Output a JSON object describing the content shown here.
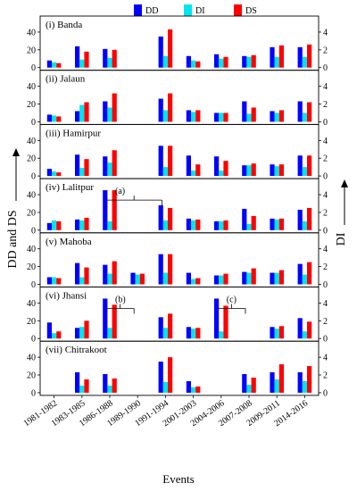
{
  "chart_data": {
    "type": "bar",
    "legend": {
      "placement": "top-center",
      "entries": [
        {
          "name": "DD",
          "color": "#0000ff"
        },
        {
          "name": "DI",
          "color": "#00e5ee"
        },
        {
          "name": "DS",
          "color": "#ff0000"
        }
      ]
    },
    "categories": [
      "1981-1982",
      "1983-1985",
      "1986-1988",
      "1989-1990",
      "1991-1994",
      "2001-2003",
      "2004-2006",
      "2007-2008",
      "2009-2011",
      "2014-2016"
    ],
    "xlabel": "Events",
    "ylabel_left": "DD and DS",
    "ylabel_right": "DI",
    "left_axis": {
      "range": [
        0,
        50
      ],
      "ticks": [
        0,
        20,
        40
      ]
    },
    "right_axis": {
      "range": [
        0,
        5
      ],
      "ticks": [
        0,
        2,
        4
      ]
    },
    "grid": false,
    "panels": [
      {
        "label": "(i) Banda",
        "DD": [
          8,
          24,
          21,
          0,
          35,
          13,
          15,
          13,
          23,
          23
        ],
        "DI": [
          0.6,
          0.9,
          1.1,
          0,
          1.3,
          0.8,
          1.0,
          1.2,
          1.2,
          1.2
        ],
        "DS": [
          5,
          18,
          20,
          0,
          43,
          7,
          12,
          14,
          25,
          26
        ]
      },
      {
        "label": "(ii) Jalaun",
        "DD": [
          8,
          12,
          23,
          0,
          26,
          13,
          10,
          23,
          12,
          23
        ],
        "DI": [
          0.7,
          1.9,
          1.6,
          0,
          1.3,
          1.1,
          1.0,
          0.9,
          1.0,
          1.0
        ],
        "DS": [
          6,
          22,
          32,
          0,
          32,
          13,
          10,
          16,
          13,
          22
        ]
      },
      {
        "label": "(iii) Hamirpur",
        "DD": [
          8,
          24,
          22,
          0,
          34,
          23,
          22,
          12,
          13,
          23
        ],
        "DI": [
          0.5,
          0.9,
          1.5,
          0,
          1.0,
          0.6,
          0.6,
          1.2,
          1.1,
          1.0
        ],
        "DS": [
          4,
          19,
          29,
          0,
          34,
          13,
          17,
          14,
          13,
          23
        ]
      },
      {
        "label": "(iv) Lalitpur",
        "DD": [
          8,
          12,
          45,
          0,
          28,
          13,
          10,
          24,
          13,
          23
        ],
        "DI": [
          1.1,
          1.1,
          1.0,
          0,
          1.1,
          1.1,
          1.0,
          0.7,
          1.2,
          1.0
        ],
        "DS": [
          10,
          14,
          45,
          0,
          25,
          12,
          11,
          16,
          13,
          25
        ]
      },
      {
        "label": "(v) Mahoba",
        "DD": [
          8,
          24,
          22,
          13,
          34,
          13,
          10,
          14,
          13,
          23
        ],
        "DI": [
          0.8,
          0.8,
          1.2,
          1.1,
          1.3,
          0.6,
          1.0,
          1.3,
          1.3,
          1.1
        ],
        "DS": [
          7,
          19,
          26,
          12,
          34,
          7,
          12,
          18,
          16,
          25
        ]
      },
      {
        "label": "(vi) Jhansi",
        "DD": [
          18,
          12,
          45,
          0,
          24,
          13,
          45,
          0,
          13,
          23
        ],
        "DI": [
          0.6,
          1.3,
          1.2,
          0,
          1.2,
          1.1,
          0.8,
          0,
          1.1,
          0.8
        ],
        "DS": [
          8,
          20,
          38,
          0,
          28,
          12,
          37,
          0,
          14,
          19
        ]
      },
      {
        "label": "(vii) Chitrakoot",
        "DD": [
          0,
          23,
          21,
          0,
          35,
          13,
          0,
          21,
          23,
          23
        ],
        "DI": [
          0,
          0.8,
          0.8,
          0,
          1.2,
          0.6,
          0,
          0.9,
          1.5,
          1.3
        ],
        "DS": [
          0,
          15,
          16,
          0,
          40,
          7,
          0,
          17,
          32,
          30
        ]
      }
    ],
    "annotations": [
      {
        "panel": 3,
        "text": "(a)"
      },
      {
        "panel": 5,
        "text": "(b)"
      },
      {
        "panel": 5,
        "text": "(c)"
      }
    ]
  }
}
